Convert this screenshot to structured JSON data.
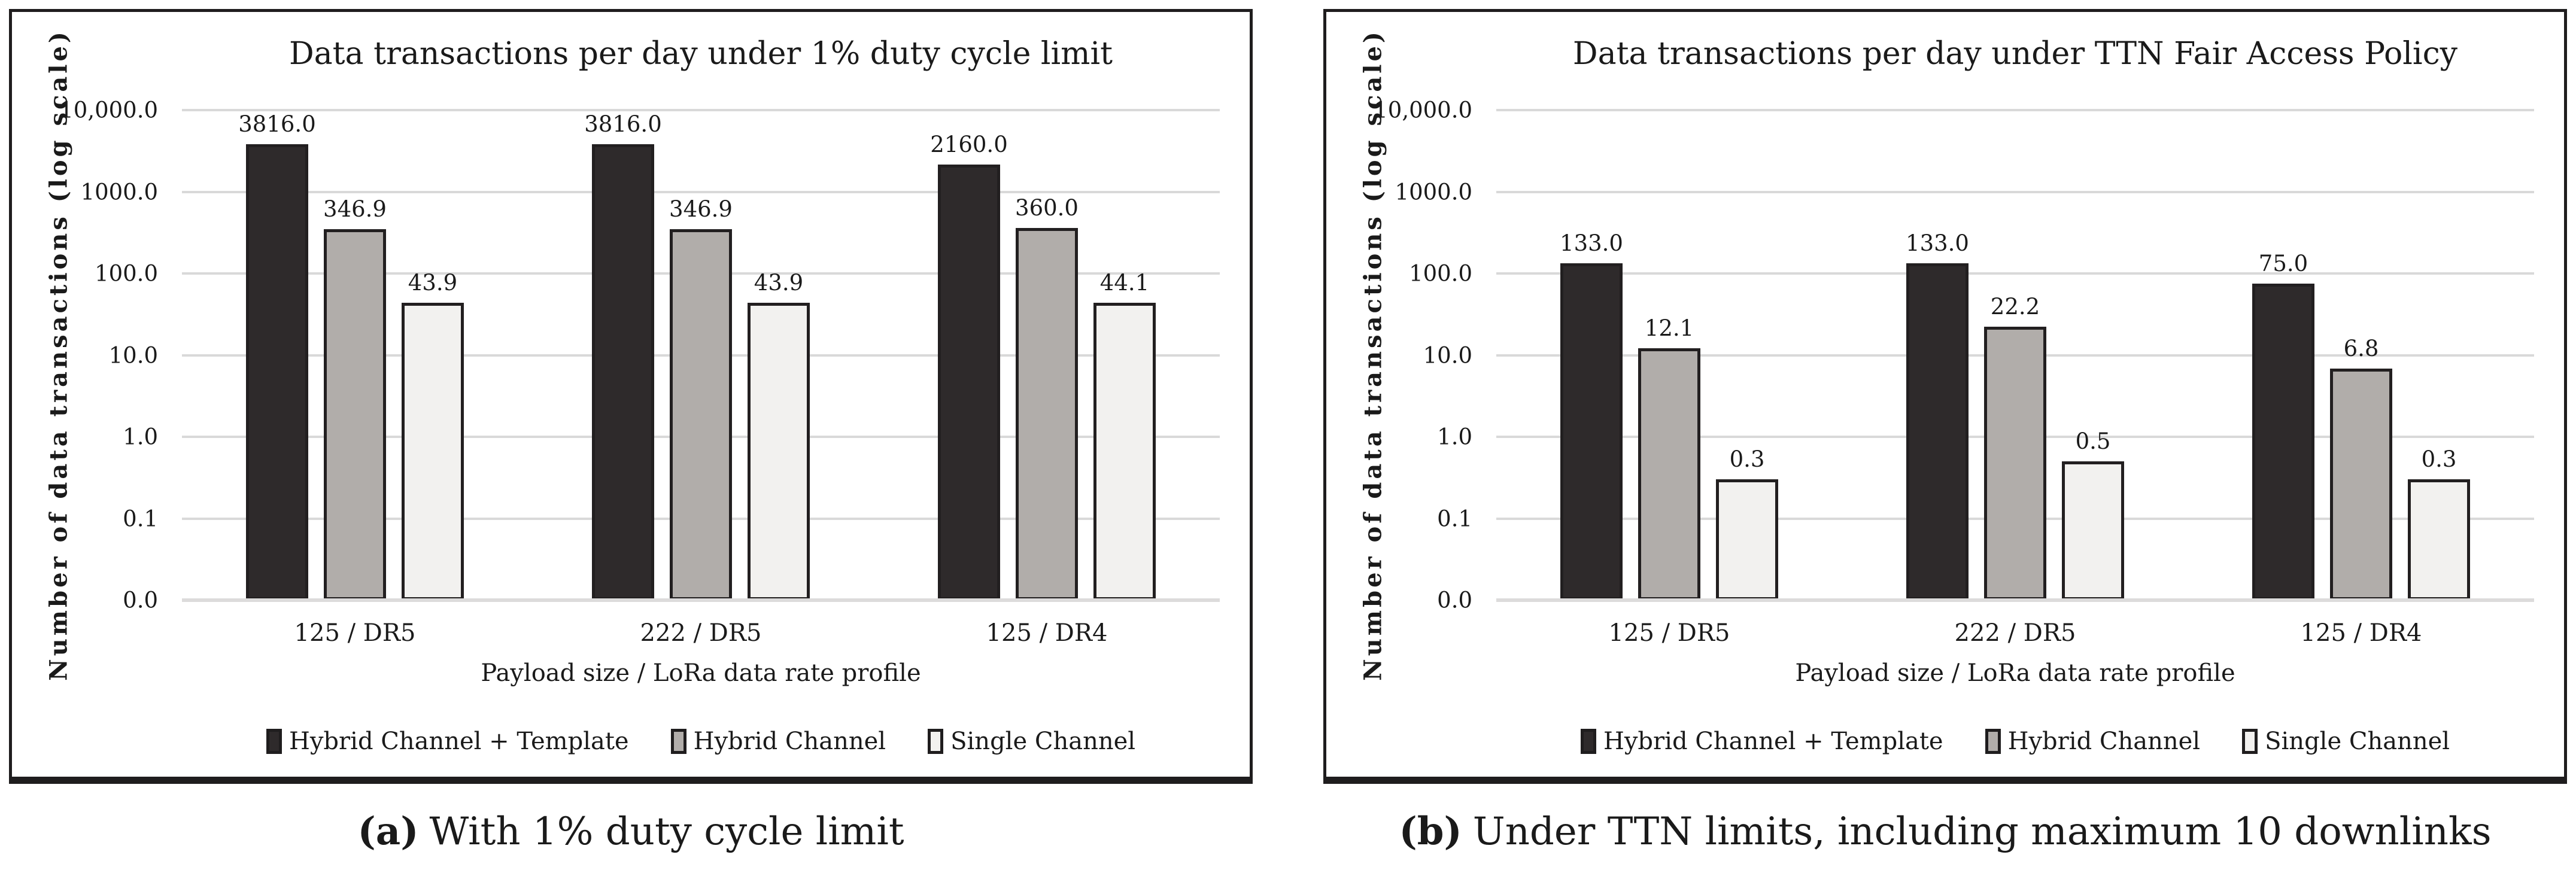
{
  "figure": {
    "panels": [
      {
        "id": "a",
        "caption_marker": "(a)",
        "caption_text": "With 1% duty cycle limit"
      },
      {
        "id": "b",
        "caption_marker": "(b)",
        "caption_text": "Under TTN limits, including maximum 10 downlinks"
      }
    ]
  },
  "chart_data": [
    {
      "type": "bar",
      "title": "Data transactions per day under 1% duty cycle limit",
      "xlabel": "Payload size / LoRa data rate profile",
      "ylabel": "Number of data transactions (log scale)",
      "y_scale": "log",
      "ylim": [
        0.01,
        10000
      ],
      "y_ticks": [
        "10,000.0",
        "1000.0",
        "100.0",
        "10.0",
        "1.0",
        "0.1",
        "0.0"
      ],
      "grid": true,
      "legend_position": "bottom",
      "categories": [
        "125 / DR5",
        "222 / DR5",
        "125 / DR4"
      ],
      "series": [
        {
          "name": "Hybrid Channel + Template",
          "color": "#2e2a2b",
          "values": [
            3816.0,
            3816.0,
            2160.0
          ],
          "labels": [
            "3816.0",
            "3816.0",
            "2160.0"
          ]
        },
        {
          "name": "Hybrid Channel",
          "color": "#b1adaa",
          "values": [
            346.9,
            346.9,
            360.0
          ],
          "labels": [
            "346.9",
            "346.9",
            "360.0"
          ]
        },
        {
          "name": "Single Channel",
          "color": "#f2f1ef",
          "values": [
            43.9,
            43.9,
            44.1
          ],
          "labels": [
            "43.9",
            "43.9",
            "44.1"
          ]
        }
      ]
    },
    {
      "type": "bar",
      "title": "Data transactions per day under TTN Fair Access Policy",
      "xlabel": "Payload size / LoRa data rate profile",
      "ylabel": "Number of data transactions (log scale)",
      "y_scale": "log",
      "ylim": [
        0.01,
        10000
      ],
      "y_ticks": [
        "10,000.0",
        "1000.0",
        "100.0",
        "10.0",
        "1.0",
        "0.1",
        "0.0"
      ],
      "grid": true,
      "legend_position": "bottom",
      "categories": [
        "125 / DR5",
        "222 / DR5",
        "125 / DR4"
      ],
      "series": [
        {
          "name": "Hybrid Channel + Template",
          "color": "#2e2a2b",
          "values": [
            133.0,
            133.0,
            75.0
          ],
          "labels": [
            "133.0",
            "133.0",
            "75.0"
          ]
        },
        {
          "name": "Hybrid Channel",
          "color": "#b1adaa",
          "values": [
            12.1,
            22.2,
            6.8
          ],
          "labels": [
            "12.1",
            "22.2",
            "6.8"
          ]
        },
        {
          "name": "Single Channel",
          "color": "#f2f1ef",
          "values": [
            0.3,
            0.5,
            0.3
          ],
          "labels": [
            "0.3",
            "0.5",
            "0.3"
          ]
        }
      ]
    }
  ]
}
